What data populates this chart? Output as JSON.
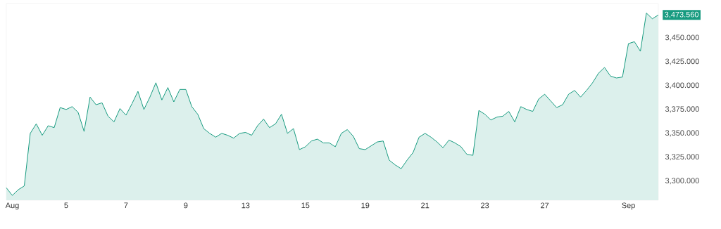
{
  "chart_data": {
    "type": "area",
    "categories": [
      null,
      "Aug",
      null,
      null,
      null,
      null,
      null,
      null,
      null,
      null,
      "5",
      null,
      null,
      null,
      null,
      null,
      null,
      null,
      null,
      null,
      "7",
      null,
      null,
      null,
      null,
      null,
      null,
      null,
      null,
      null,
      "9",
      null,
      null,
      null,
      null,
      null,
      null,
      null,
      null,
      null,
      "13",
      null,
      null,
      null,
      null,
      null,
      null,
      null,
      null,
      null,
      "15",
      null,
      null,
      null,
      null,
      null,
      null,
      null,
      null,
      null,
      "19",
      null,
      null,
      null,
      null,
      null,
      null,
      null,
      null,
      null,
      "21",
      null,
      null,
      null,
      null,
      null,
      null,
      null,
      null,
      null,
      "23",
      null,
      null,
      null,
      null,
      null,
      null,
      null,
      null,
      null,
      "27",
      null,
      null,
      null,
      null,
      null,
      null,
      null,
      null,
      null,
      null,
      null,
      null,
      null,
      "Sep",
      null,
      null,
      null,
      null,
      null
    ],
    "values": [
      3293,
      3285,
      3291,
      3295,
      3350,
      3360,
      3348,
      3358,
      3356,
      3377,
      3375,
      3378,
      3372,
      3352,
      3388,
      3380,
      3382,
      3368,
      3362,
      3376,
      3369,
      3381,
      3394,
      3375,
      3388,
      3403,
      3385,
      3398,
      3383,
      3396,
      3396,
      3378,
      3370,
      3355,
      3350,
      3346,
      3350,
      3348,
      3345,
      3350,
      3351,
      3348,
      3358,
      3365,
      3356,
      3360,
      3370,
      3350,
      3355,
      3333,
      3336,
      3342,
      3344,
      3340,
      3340,
      3336,
      3350,
      3354,
      3347,
      3334,
      3333,
      3337,
      3341,
      3342,
      3322,
      3317,
      3313,
      3322,
      3330,
      3346,
      3350,
      3346,
      3341,
      3335,
      3343,
      3340,
      3336,
      3328,
      3327,
      3374,
      3370,
      3364,
      3367,
      3368,
      3373,
      3362,
      3378,
      3375,
      3373,
      3386,
      3391,
      3384,
      3377,
      3380,
      3391,
      3395,
      3388,
      3395,
      3403,
      3413,
      3419,
      3410,
      3408,
      3409,
      3444,
      3446,
      3436,
      3476,
      3470,
      3474
    ],
    "color": "#179b80",
    "ylim": [
      3280,
      3486
    ],
    "yticks": [
      {
        "value": 3300,
        "label": "3,300.000"
      },
      {
        "value": 3325,
        "label": "3,325.000"
      },
      {
        "value": 3350,
        "label": "3,350.000"
      },
      {
        "value": 3375,
        "label": "3,375.000"
      },
      {
        "value": 3400,
        "label": "3,400.000"
      },
      {
        "value": 3425,
        "label": "3,425.000"
      },
      {
        "value": 3450,
        "label": "3,450.000"
      }
    ],
    "annotations": [
      "3,473.560"
    ]
  }
}
